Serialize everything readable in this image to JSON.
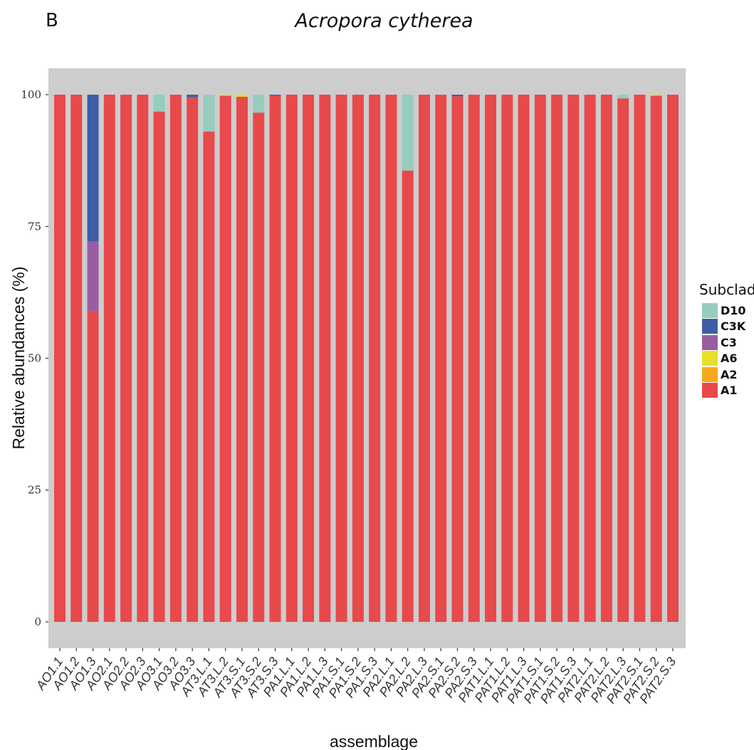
{
  "panel_label": "B",
  "chart_data": {
    "type": "bar",
    "stacked": true,
    "title": "Acropora cytherea",
    "xlabel": "assemblage",
    "ylabel": "Relative abundances (%)",
    "ylim": [
      -5,
      105
    ],
    "yticks": [
      0,
      25,
      50,
      75,
      100
    ],
    "grid": false,
    "legend_position": "right",
    "legend_title": "Subclade",
    "legend_order": [
      "D10",
      "C3K",
      "C3",
      "A6",
      "A2",
      "A1"
    ],
    "categories": [
      "AO1.1",
      "AO1.2",
      "AO1.3",
      "AO2.1",
      "AO2.2",
      "AO2.3",
      "AO3.1",
      "AO3.2",
      "AO3.3",
      "AT3.L.1",
      "AT3.L.2",
      "AT3.S.1",
      "AT3.S.2",
      "AT3.S.3",
      "PA1.L.1",
      "PA1.L.2",
      "PA1.L.3",
      "PA1.S.1",
      "PA1.S.2",
      "PA1.S.3",
      "PA2.L.1",
      "PA2.L.2",
      "PA2.L.3",
      "PA2.S.1",
      "PA2.S.2",
      "PA2.S.3",
      "PAT1.L.1",
      "PAT1.L.2",
      "PAT1.L.3",
      "PAT1.S.1",
      "PAT1.S.2",
      "PAT1.S.3",
      "PAT2.L.1",
      "PAT2.L.2",
      "PAT2.L.3",
      "PAT2.S.1",
      "PAT2.S.2",
      "PAT2.S.3"
    ],
    "series": [
      {
        "name": "A1",
        "color": "#E8494B",
        "values": [
          100,
          100,
          59,
          100,
          100,
          100,
          96.8,
          100,
          99.5,
          93,
          99.8,
          99.6,
          96.6,
          99.8,
          100,
          100,
          100,
          100,
          100,
          100,
          100,
          85.6,
          100,
          100,
          99.7,
          100,
          100,
          100,
          100,
          100,
          100,
          100,
          100,
          100,
          99.3,
          100,
          99.8,
          100
        ]
      },
      {
        "name": "A2",
        "color": "#F7A81B",
        "values": [
          0,
          0,
          0,
          0,
          0,
          0,
          0,
          0,
          0,
          0,
          0,
          0,
          0,
          0,
          0,
          0,
          0,
          0,
          0,
          0,
          0,
          0,
          0,
          0,
          0,
          0,
          0,
          0,
          0,
          0,
          0,
          0,
          0,
          0,
          0,
          0,
          0,
          0
        ]
      },
      {
        "name": "A6",
        "color": "#E6E02A",
        "values": [
          0,
          0,
          0,
          0,
          0,
          0,
          0,
          0,
          0,
          0,
          0.2,
          0.4,
          0,
          0,
          0,
          0,
          0,
          0,
          0,
          0,
          0,
          0,
          0,
          0,
          0,
          0,
          0,
          0,
          0,
          0,
          0,
          0,
          0,
          0,
          0,
          0,
          0.2,
          0
        ]
      },
      {
        "name": "C3",
        "color": "#9A5CA3",
        "values": [
          0,
          0,
          13.2,
          0,
          0,
          0,
          0,
          0,
          0,
          0,
          0,
          0,
          0,
          0,
          0,
          0,
          0,
          0,
          0,
          0,
          0,
          0,
          0,
          0,
          0,
          0,
          0,
          0,
          0,
          0,
          0,
          0,
          0,
          0,
          0,
          0,
          0,
          0
        ]
      },
      {
        "name": "C3K",
        "color": "#3E5DA6",
        "values": [
          0,
          0,
          27.8,
          0,
          0,
          0,
          0,
          0,
          0.5,
          0,
          0,
          0,
          0,
          0.2,
          0,
          0,
          0,
          0,
          0,
          0,
          0,
          0,
          0,
          0,
          0.3,
          0,
          0,
          0,
          0,
          0,
          0,
          0,
          0,
          0,
          0,
          0,
          0,
          0
        ]
      },
      {
        "name": "D10",
        "color": "#96CDBE",
        "values": [
          0,
          0,
          0,
          0,
          0,
          0,
          3.2,
          0,
          0,
          7,
          0,
          0,
          3.4,
          0,
          0,
          0,
          0,
          0,
          0,
          0,
          0,
          14.4,
          0,
          0,
          0,
          0,
          0,
          0,
          0,
          0,
          0,
          0,
          0,
          0,
          0.7,
          0,
          0,
          0
        ]
      }
    ]
  }
}
